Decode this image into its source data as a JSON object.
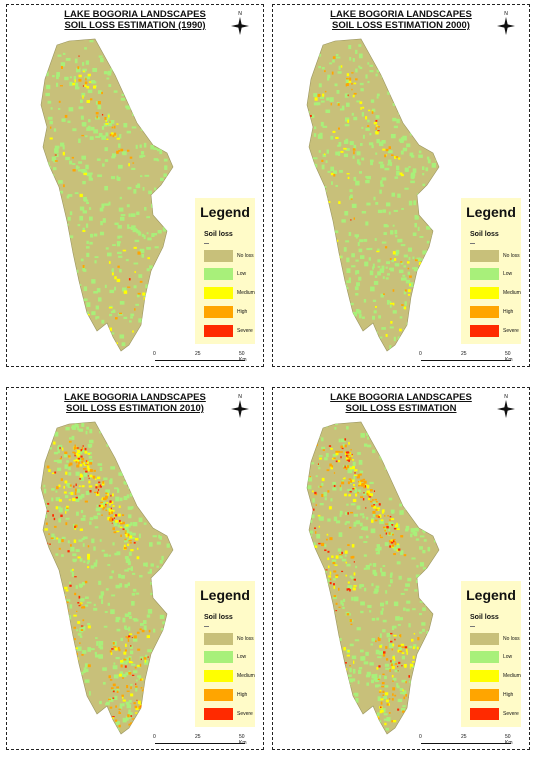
{
  "panels": [
    {
      "title_line1": "LAKE BOGORIA LANDSCAPES",
      "title_line2": "SOIL LOSS ESTIMATION (1990)"
    },
    {
      "title_line1": "LAKE BOGORIA LANDSCAPES",
      "title_line2": "SOIL LOSS ESTIMATION 2000)"
    },
    {
      "title_line1": "LAKE BOGORIA LANDSCAPES",
      "title_line2": "SOIL LOSS ESTIMATION 2010)"
    },
    {
      "title_line1": "LAKE BOGORIA LANDSCAPES",
      "title_line2": "SOIL LOSS ESTIMATION"
    }
  ],
  "legend": {
    "title": "Legend",
    "subtitle": "Soil loss",
    "items": [
      {
        "label": "No loss",
        "color": "#c8c07a"
      },
      {
        "label": "Low",
        "color": "#a8f07a"
      },
      {
        "label": "Medium",
        "color": "#ffff00"
      },
      {
        "label": "High",
        "color": "#ffa500"
      },
      {
        "label": "Severe",
        "color": "#ff2a00"
      }
    ]
  },
  "scale_bar": {
    "labels": [
      "0",
      "25",
      "50 Km"
    ]
  },
  "north_arrow": {
    "letter": "N",
    "icon": "compass-north-arrow-icon"
  },
  "map_colors": {
    "base": "#c8c07a",
    "low": "#a8f07a",
    "medium": "#ffff00",
    "high": "#ffa500",
    "severe": "#ff2a00"
  }
}
